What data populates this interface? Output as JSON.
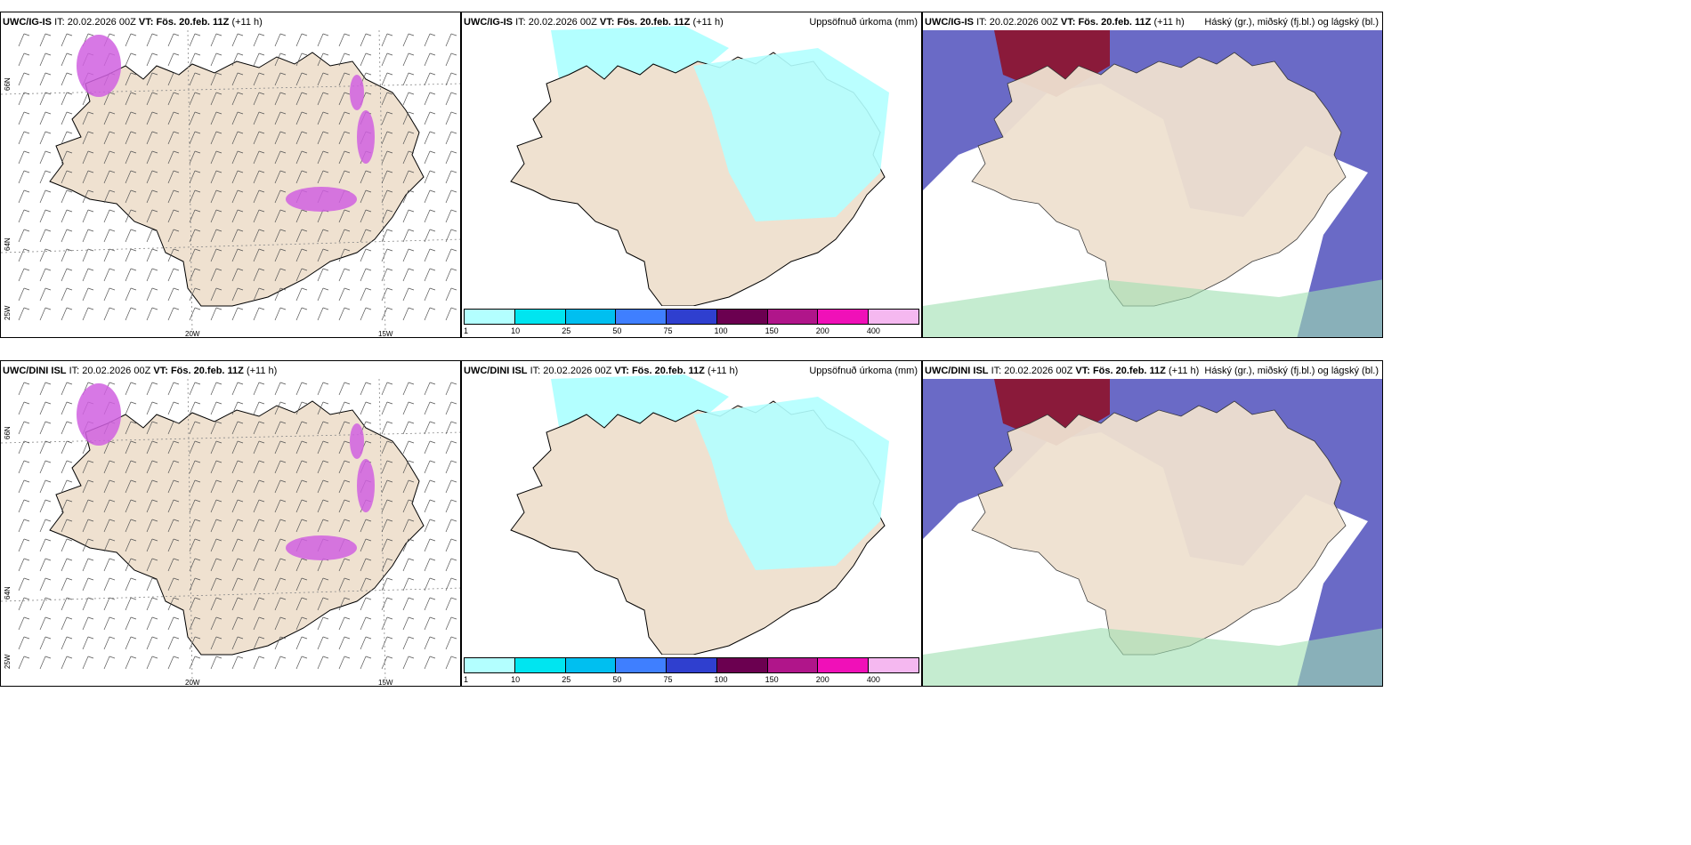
{
  "panels": [
    {
      "model": "UWC/IG-IS",
      "it_label": "IT:",
      "it": "20.02.2026 00Z",
      "vt_label": "VT:",
      "vt": "Fös. 20.feb. 11Z",
      "lead": "(+11 h)",
      "right": ""
    },
    {
      "model": "UWC/IG-IS",
      "it_label": "IT:",
      "it": "20.02.2026 00Z",
      "vt_label": "VT:",
      "vt": "Fös. 20.feb. 11Z",
      "lead": "(+11 h)",
      "right": "Uppsöfnuð úrkoma (mm)"
    },
    {
      "model": "UWC/IG-IS",
      "it_label": "IT:",
      "it": "20.02.2026 00Z",
      "vt_label": "VT:",
      "vt": "Fös. 20.feb. 11Z",
      "lead": "(+11 h)",
      "right": "Háský (gr.), miðský (fj.bl.) og lágský (bl.)"
    },
    {
      "model": "UWC/DINI ISL",
      "it_label": "IT:",
      "it": "20.02.2026 00Z",
      "vt_label": "VT:",
      "vt": "Fös. 20.feb. 11Z",
      "lead": "(+11 h)",
      "right": ""
    },
    {
      "model": "UWC/DINI ISL",
      "it_label": "IT:",
      "it": "20.02.2026 00Z",
      "vt_label": "VT:",
      "vt": "Fös. 20.feb. 11Z",
      "lead": "(+11 h)",
      "right": "Uppsöfnuð úrkoma (mm)"
    },
    {
      "model": "UWC/DINI ISL",
      "it_label": "IT:",
      "it": "20.02.2026 00Z",
      "vt_label": "VT:",
      "vt": "Fös. 20.feb. 11Z",
      "lead": "(+11 h)",
      "right": "Háský (gr.), miðský (fj.bl.) og lágský (bl.)"
    }
  ],
  "colorbar": {
    "labels": [
      "1",
      "10",
      "25",
      "50",
      "75",
      "100",
      "150",
      "200",
      "400"
    ],
    "colors": [
      "#b3ffff",
      "#00e5f0",
      "#00bff0",
      "#3f7fff",
      "#2f3fcf",
      "#6b0050",
      "#b0158a",
      "#f010b8",
      "#f5b8f0"
    ]
  },
  "axes": {
    "lon_20w": "20W",
    "lon_15w": "15W",
    "lat_66n": "66N",
    "lat_64n": "64N",
    "lat_25w": "25W"
  },
  "colors": {
    "land": "#efe1d0",
    "water": "#ffffff",
    "sea_precip": "#b3ffff",
    "cloud_low": "#5a5ac0",
    "cloud_high": "#8a1a3a",
    "snow": "#d060e0"
  }
}
